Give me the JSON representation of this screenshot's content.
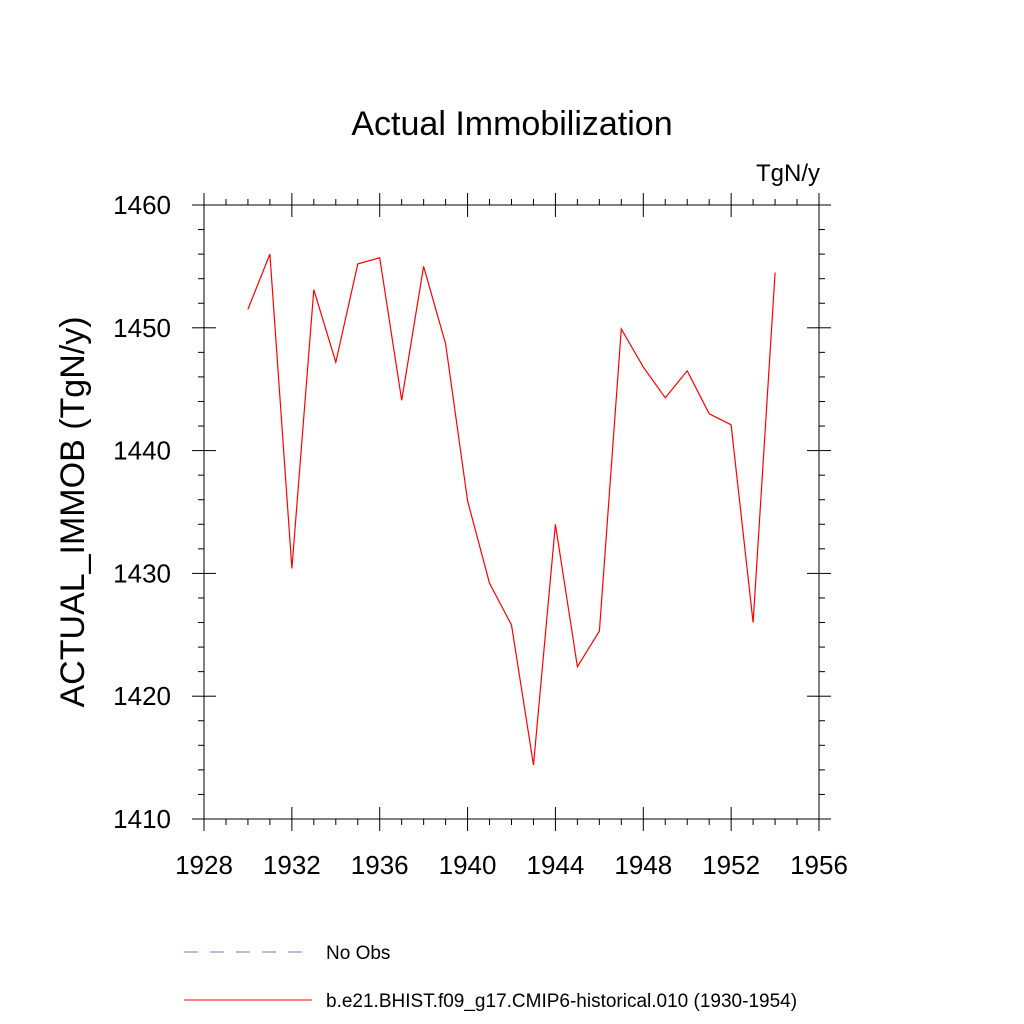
{
  "chart_data": {
    "type": "line",
    "title": "Actual Immobilization",
    "units": "TgN/y",
    "xlabel": "",
    "ylabel": "ACTUAL_IMMOB  (TgN/y)",
    "xlim": [
      1928,
      1956
    ],
    "ylim": [
      1410,
      1460
    ],
    "xticks": [
      1928,
      1932,
      1936,
      1940,
      1944,
      1948,
      1952,
      1956
    ],
    "yticks": [
      1410,
      1420,
      1430,
      1440,
      1450,
      1460
    ],
    "grid": false,
    "legend_position": "bottom",
    "series": [
      {
        "name": "b.e21.BHIST.f09_g17.CMIP6-historical.010 (1930-1954)",
        "color": "#ff0000",
        "style": "solid",
        "x": [
          1930,
          1931,
          1932,
          1933,
          1934,
          1935,
          1936,
          1937,
          1938,
          1939,
          1940,
          1941,
          1942,
          1943,
          1944,
          1945,
          1946,
          1947,
          1948,
          1949,
          1950,
          1951,
          1952,
          1953,
          1954
        ],
        "y": [
          1451.5,
          1456.0,
          1430.4,
          1453.1,
          1447.2,
          1455.2,
          1455.7,
          1444.1,
          1455.0,
          1448.7,
          1435.9,
          1429.2,
          1425.8,
          1414.4,
          1434.0,
          1422.4,
          1425.3,
          1449.9,
          1446.8,
          1444.3,
          1446.5,
          1443.0,
          1442.1,
          1426.0,
          1454.5
        ]
      }
    ],
    "legend": [
      {
        "label": "No Obs",
        "color": "#7b6fc6",
        "style": "dashed"
      },
      {
        "label": "b.e21.BHIST.f09_g17.CMIP6-historical.010 (1930-1954)",
        "color": "#ff0000",
        "style": "solid"
      }
    ]
  }
}
